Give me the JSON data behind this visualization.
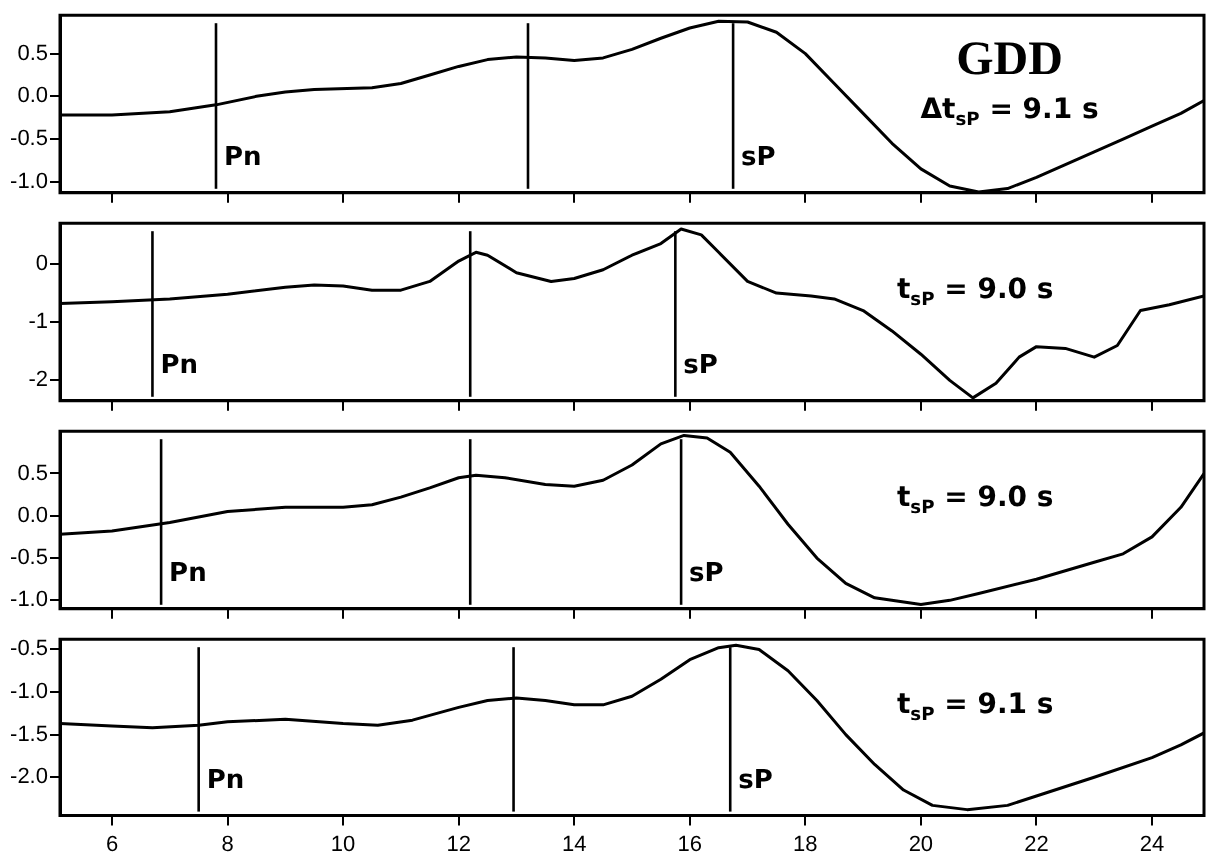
{
  "chart_data": [
    {
      "type": "line",
      "annotations": [
        "GDD",
        "Δt$_{sP}$ = 9.1 s"
      ],
      "xlim": [
        5.1,
        24.9
      ],
      "xticks": [
        6,
        8,
        10,
        12,
        14,
        16,
        18,
        20,
        22,
        24
      ],
      "ylim": [
        -1.13,
        0.95
      ],
      "yticks": [
        {
          "value": 0.5,
          "label": "0.5"
        },
        {
          "value": 0,
          "label": "0.0"
        },
        {
          "value": -0.5,
          "label": "-0.5"
        },
        {
          "value": -1,
          "label": "-1.0"
        }
      ],
      "tick_labels": "y",
      "series": [
        {
          "color": "#000000",
          "x": [
            5.1,
            6,
            7,
            7.8,
            8.5,
            9,
            9.5,
            10.5,
            11,
            11.5,
            12,
            12.5,
            13,
            13.5,
            14,
            14.5,
            15,
            15.5,
            16,
            16.5,
            17,
            17.5,
            18,
            18.5,
            19,
            19.5,
            20,
            20.5,
            21,
            21.5,
            22,
            22.5,
            23,
            23.5,
            24,
            24.5,
            24.9
          ],
          "values": [
            -0.22,
            -0.22,
            -0.18,
            -0.1,
            0.0,
            0.05,
            0.08,
            0.1,
            0.15,
            0.25,
            0.35,
            0.43,
            0.46,
            0.45,
            0.42,
            0.45,
            0.55,
            0.68,
            0.8,
            0.88,
            0.87,
            0.75,
            0.5,
            0.15,
            -0.2,
            -0.55,
            -0.85,
            -1.05,
            -1.12,
            -1.08,
            -0.95,
            -0.8,
            -0.65,
            -0.5,
            -0.35,
            -0.2,
            -0.05
          ]
        }
      ],
      "ref_lines": [
        {
          "axis": "x",
          "value": 7.8,
          "label": "Pn"
        },
        {
          "axis": "x",
          "value": 13.2
        },
        {
          "axis": "x",
          "value": 16.75,
          "label": "sP"
        }
      ]
    },
    {
      "type": "line",
      "annotations": [
        "t$_{sP}$ = 9.0 s"
      ],
      "xlim": [
        5.1,
        24.9
      ],
      "xticks": [
        6,
        8,
        10,
        12,
        14,
        16,
        18,
        20,
        22,
        24
      ],
      "ylim": [
        -2.35,
        0.7
      ],
      "yticks": [
        0,
        -1,
        -2
      ],
      "tick_labels": "y",
      "series": [
        {
          "color": "#000000",
          "x": [
            5.1,
            6,
            7,
            8,
            9,
            9.5,
            10,
            10.5,
            11,
            11.5,
            12,
            12.3,
            12.5,
            13,
            13.6,
            14,
            14.5,
            15,
            15.5,
            15.85,
            16.2,
            16.5,
            17,
            17.5,
            18.1,
            18.5,
            19,
            19.5,
            20,
            20.5,
            20.9,
            21.3,
            21.7,
            22,
            22.5,
            23,
            23.4,
            23.8,
            24.3,
            24.9
          ],
          "values": [
            -0.68,
            -0.65,
            -0.6,
            -0.52,
            -0.4,
            -0.36,
            -0.38,
            -0.45,
            -0.45,
            -0.3,
            0.05,
            0.2,
            0.15,
            -0.15,
            -0.3,
            -0.25,
            -0.1,
            0.15,
            0.35,
            0.6,
            0.5,
            0.2,
            -0.3,
            -0.5,
            -0.55,
            -0.6,
            -0.8,
            -1.15,
            -1.55,
            -2.0,
            -2.3,
            -2.05,
            -1.6,
            -1.42,
            -1.45,
            -1.6,
            -1.4,
            -0.8,
            -0.7,
            -0.55
          ]
        }
      ],
      "ref_lines": [
        {
          "axis": "x",
          "value": 6.7,
          "label": "Pn"
        },
        {
          "axis": "x",
          "value": 12.2
        },
        {
          "axis": "x",
          "value": 15.75,
          "label": "sP"
        }
      ]
    },
    {
      "type": "line",
      "annotations": [
        "t$_{sP}$ = 9.0 s"
      ],
      "xlim": [
        5.1,
        24.9
      ],
      "xticks": [
        6,
        8,
        10,
        12,
        14,
        16,
        18,
        20,
        22,
        24
      ],
      "ylim": [
        -1.1,
        1.0
      ],
      "yticks": [
        {
          "value": 0.5,
          "label": "0.5"
        },
        {
          "value": 0,
          "label": "0.0"
        },
        {
          "value": -0.5,
          "label": "-0.5"
        },
        {
          "value": -1,
          "label": "-1.0"
        }
      ],
      "tick_labels": "y",
      "series": [
        {
          "color": "#000000",
          "x": [
            5.1,
            6,
            7,
            8,
            9,
            10,
            10.5,
            11,
            11.5,
            12,
            12.3,
            12.8,
            13.5,
            14,
            14.5,
            15,
            15.5,
            15.9,
            16.3,
            16.7,
            17.2,
            17.7,
            18.2,
            18.7,
            19.2,
            20.0,
            20.5,
            21,
            22,
            23,
            23.5,
            24,
            24.5,
            24.9
          ],
          "values": [
            -0.22,
            -0.18,
            -0.08,
            0.05,
            0.1,
            0.1,
            0.13,
            0.22,
            0.33,
            0.45,
            0.48,
            0.45,
            0.37,
            0.35,
            0.42,
            0.6,
            0.85,
            0.95,
            0.92,
            0.75,
            0.35,
            -0.1,
            -0.5,
            -0.8,
            -0.97,
            -1.05,
            -1.0,
            -0.92,
            -0.75,
            -0.55,
            -0.45,
            -0.25,
            0.1,
            0.5
          ]
        }
      ],
      "ref_lines": [
        {
          "axis": "x",
          "value": 6.85,
          "label": "Pn"
        },
        {
          "axis": "x",
          "value": 12.2
        },
        {
          "axis": "x",
          "value": 15.85,
          "label": "sP"
        }
      ]
    },
    {
      "type": "line",
      "annotations": [
        "t$_{sP}$ = 9.1 s"
      ],
      "xlim": [
        5.1,
        24.9
      ],
      "xticks": [
        6,
        8,
        10,
        12,
        14,
        16,
        18,
        20,
        22,
        24
      ],
      "ylim": [
        -2.45,
        -0.38
      ],
      "yticks": [
        {
          "value": -0.5,
          "label": "-0.5"
        },
        {
          "value": -1,
          "label": "-1.0"
        },
        {
          "value": -1.5,
          "label": "-1.5"
        },
        {
          "value": -2,
          "label": "-2.0"
        }
      ],
      "series": [
        {
          "color": "#000000",
          "x": [
            5.1,
            6,
            6.7,
            7.5,
            8,
            9,
            10,
            10.6,
            11.2,
            12,
            12.5,
            13,
            13.5,
            14,
            14.5,
            15,
            15.5,
            16,
            16.5,
            16.8,
            17.2,
            17.7,
            18.2,
            18.7,
            19.2,
            19.7,
            20.2,
            20.8,
            21.5,
            22,
            23,
            24,
            24.5,
            24.9
          ],
          "values": [
            -1.37,
            -1.4,
            -1.42,
            -1.39,
            -1.35,
            -1.32,
            -1.37,
            -1.39,
            -1.33,
            -1.18,
            -1.1,
            -1.07,
            -1.1,
            -1.15,
            -1.15,
            -1.05,
            -0.85,
            -0.62,
            -0.48,
            -0.45,
            -0.5,
            -0.75,
            -1.1,
            -1.5,
            -1.85,
            -2.15,
            -2.33,
            -2.38,
            -2.33,
            -2.22,
            -2.0,
            -1.77,
            -1.62,
            -1.48
          ]
        }
      ],
      "ref_lines": [
        {
          "axis": "x",
          "value": 7.5,
          "label": "Pn"
        },
        {
          "axis": "x",
          "value": 12.95
        },
        {
          "axis": "x",
          "value": 16.7,
          "label": "sP"
        }
      ]
    }
  ]
}
